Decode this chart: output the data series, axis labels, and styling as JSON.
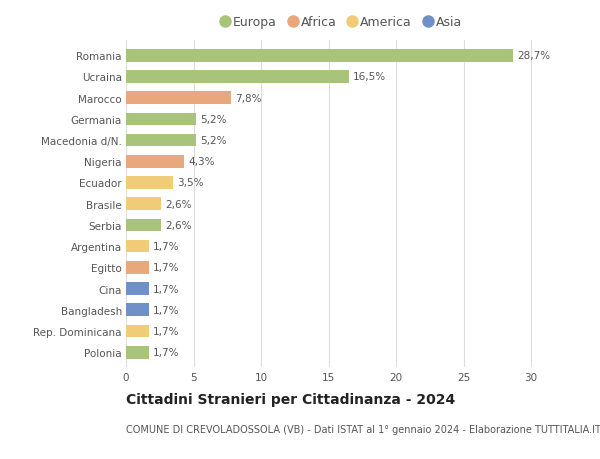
{
  "categories": [
    "Romania",
    "Ucraina",
    "Marocco",
    "Germania",
    "Macedonia d/N.",
    "Nigeria",
    "Ecuador",
    "Brasile",
    "Serbia",
    "Argentina",
    "Egitto",
    "Cina",
    "Bangladesh",
    "Rep. Dominicana",
    "Polonia"
  ],
  "values": [
    28.7,
    16.5,
    7.8,
    5.2,
    5.2,
    4.3,
    3.5,
    2.6,
    2.6,
    1.7,
    1.7,
    1.7,
    1.7,
    1.7,
    1.7
  ],
  "labels": [
    "28,7%",
    "16,5%",
    "7,8%",
    "5,2%",
    "5,2%",
    "4,3%",
    "3,5%",
    "2,6%",
    "2,6%",
    "1,7%",
    "1,7%",
    "1,7%",
    "1,7%",
    "1,7%",
    "1,7%"
  ],
  "colors": [
    "#a8c47a",
    "#a8c47a",
    "#e8a87c",
    "#a8c47a",
    "#a8c47a",
    "#e8a87c",
    "#f0cc78",
    "#f0cc78",
    "#a8c47a",
    "#f0cc78",
    "#e8a87c",
    "#7090c8",
    "#7090c8",
    "#f0cc78",
    "#a8c47a"
  ],
  "legend_labels": [
    "Europa",
    "Africa",
    "America",
    "Asia"
  ],
  "legend_colors": [
    "#a8c47a",
    "#e8a87c",
    "#f0cc78",
    "#7090c8"
  ],
  "title": "Cittadini Stranieri per Cittadinanza - 2024",
  "subtitle": "COMUNE DI CREVOLADOSSOLA (VB) - Dati ISTAT al 1° gennaio 2024 - Elaborazione TUTTITALIA.IT",
  "xlim": [
    0,
    32
  ],
  "xticks": [
    0,
    5,
    10,
    15,
    20,
    25,
    30
  ],
  "bg_color": "#ffffff",
  "grid_color": "#dddddd",
  "bar_height": 0.6,
  "label_fontsize": 7.5,
  "tick_fontsize": 7.5,
  "legend_fontsize": 9,
  "title_fontsize": 10,
  "subtitle_fontsize": 7
}
